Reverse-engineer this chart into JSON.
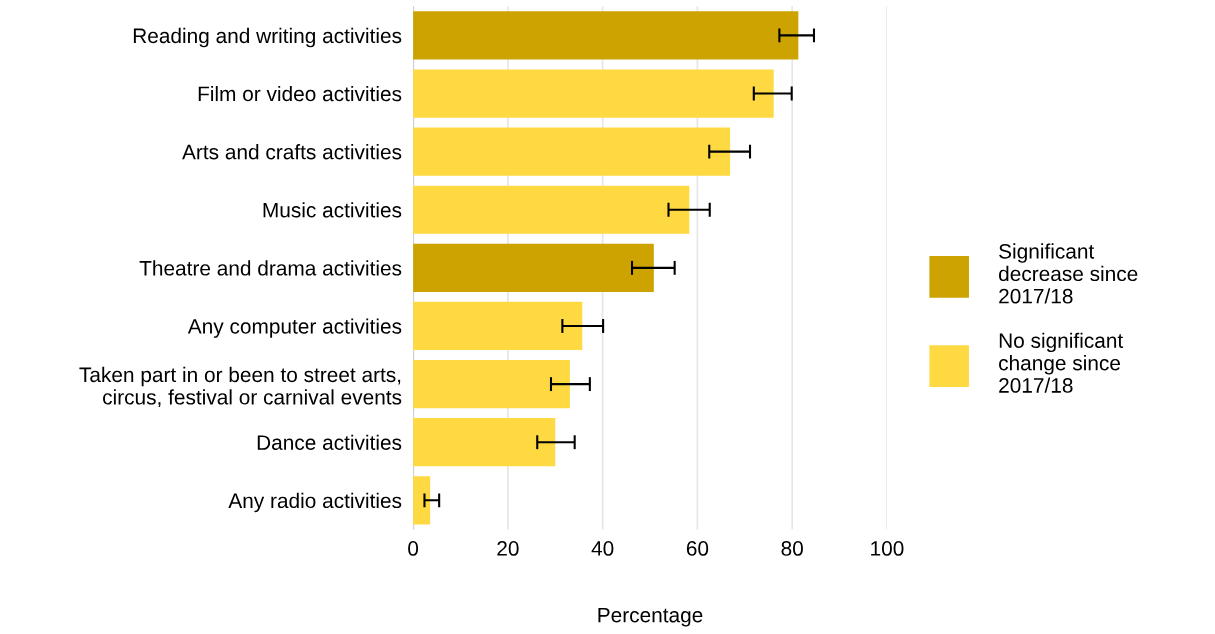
{
  "chart_data": {
    "type": "bar",
    "orientation": "horizontal",
    "xlabel": "Percentage",
    "categories": [
      "Reading and writing activities",
      "Film or video activities",
      "Arts and crafts activities",
      "Music activities",
      "Theatre and drama activities",
      "Any computer activities",
      "Taken part in or been to street arts,\ncircus, festival or carnival events",
      "Dance activities",
      "Any radio activities"
    ],
    "series": [
      {
        "name": "Significant\ndecrease since\n2017/18",
        "color": "#cca300",
        "values": [
          81.3,
          null,
          null,
          null,
          50.8,
          null,
          null,
          null,
          null
        ],
        "errors": [
          [
            77.3,
            84.6
          ],
          null,
          null,
          null,
          [
            46.2,
            55.2
          ],
          null,
          null,
          null,
          null
        ]
      },
      {
        "name": "No significant\nchange since\n2017/18",
        "color": "#ffd942",
        "values": [
          null,
          76.1,
          66.9,
          58.3,
          null,
          35.7,
          33.1,
          30.0,
          3.6
        ],
        "errors": [
          null,
          [
            71.9,
            79.9
          ],
          [
            62.5,
            71.1
          ],
          [
            53.9,
            62.6
          ],
          null,
          [
            31.5,
            40.1
          ],
          [
            29.1,
            37.3
          ],
          [
            26.2,
            34.1
          ],
          [
            2.4,
            5.5
          ]
        ]
      }
    ],
    "xlim": [
      0,
      100
    ],
    "xticks": [
      0,
      20,
      40,
      60,
      80,
      100
    ],
    "grid": "x",
    "legend": "right"
  }
}
